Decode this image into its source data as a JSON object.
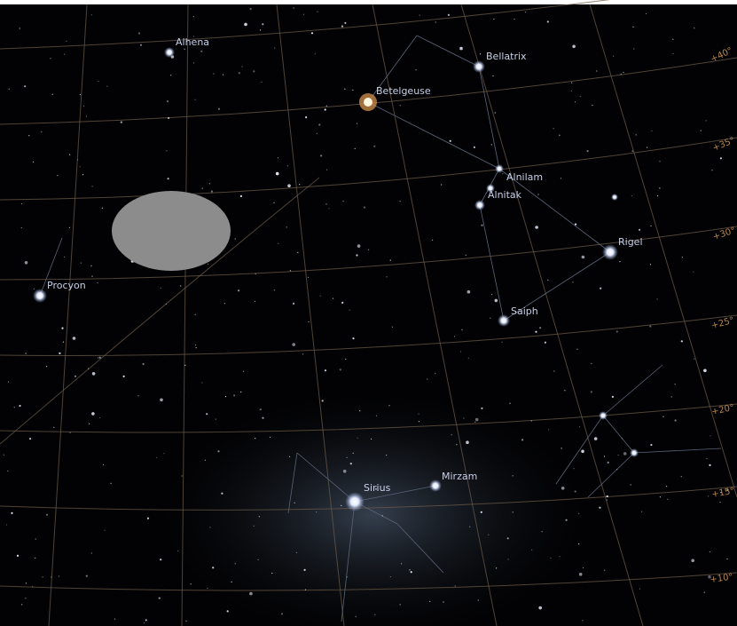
{
  "stars": [
    {
      "name": "Alhena"
    },
    {
      "name": "Bellatrix"
    },
    {
      "name": "Betelgeuse"
    },
    {
      "name": "Alnilam"
    },
    {
      "name": "Alnitak"
    },
    {
      "name": "Rigel"
    },
    {
      "name": "Procyon"
    },
    {
      "name": "Saiph"
    },
    {
      "name": "Sirius"
    },
    {
      "name": "Mirzam"
    }
  ],
  "altitude_labels": [
    "+40°",
    "+35°",
    "+30°",
    "+25°",
    "+20°",
    "+15°",
    "+10°"
  ]
}
